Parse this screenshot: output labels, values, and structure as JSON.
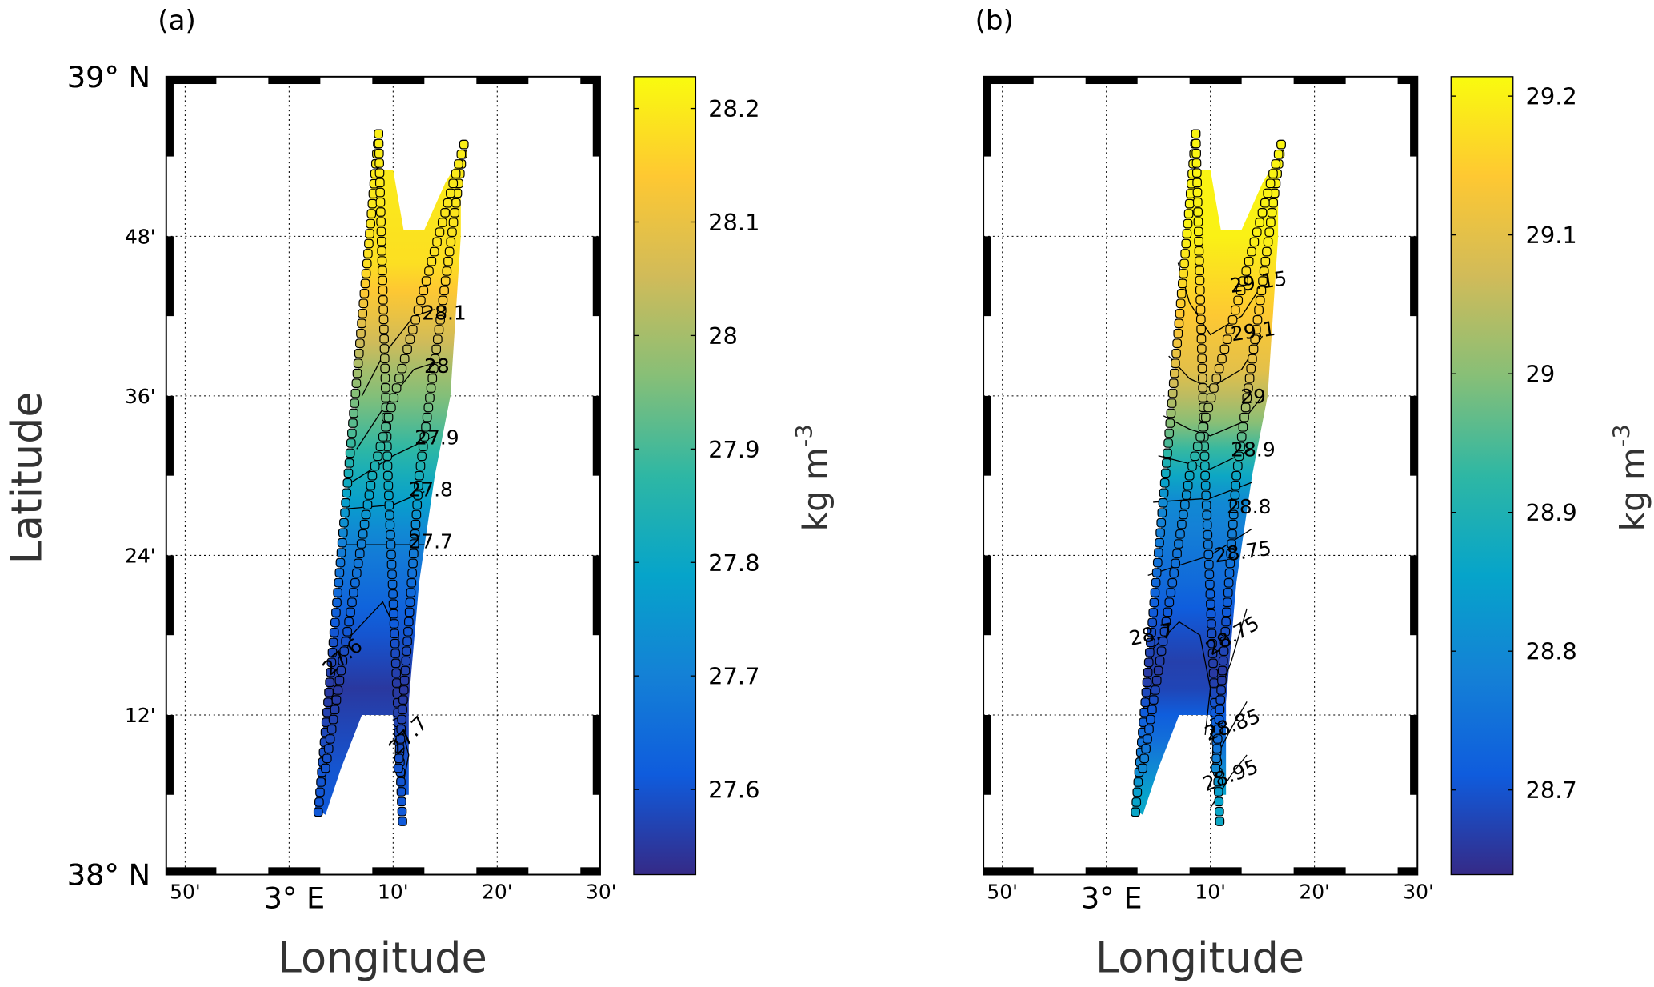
{
  "chart_data": [
    {
      "type": "heatmap",
      "panel_label": "(a)",
      "xlabel": "Longitude",
      "ylabel": "Latitude",
      "lat_tick_labels": [
        "39° N",
        "48'",
        "36'",
        "24'",
        "12'",
        "38° N"
      ],
      "lat_ticks_min": [
        60,
        48,
        36,
        24,
        12,
        0
      ],
      "lon_tick_labels": [
        "50'",
        "3° E",
        "10'",
        "20'",
        "30'"
      ],
      "lon_ticks_min": [
        -10,
        0,
        10,
        20,
        30
      ],
      "colorbar": {
        "label": "kg m",
        "label_sup": "-3",
        "ticks": [
          28.2,
          28.1,
          28.0,
          27.9,
          27.8,
          27.7,
          27.6
        ],
        "tick_labels": [
          "28.2",
          "28.1",
          "28",
          "27.9",
          "27.8",
          "27.7",
          "27.6"
        ],
        "clim": [
          27.525,
          28.228
        ],
        "colormap": "parula"
      },
      "grid": true,
      "field_value_by_latitude": [
        [
          0,
          27.62
        ],
        [
          8,
          27.6
        ],
        [
          14,
          27.55
        ],
        [
          18,
          27.6
        ],
        [
          25,
          27.7
        ],
        [
          29,
          27.8
        ],
        [
          33,
          27.9
        ],
        [
          38,
          28.0
        ],
        [
          42,
          28.1
        ],
        [
          46,
          28.18
        ],
        [
          60,
          28.22
        ]
      ],
      "contours": [
        {
          "level": "28.1",
          "points": [
            [
              7,
              36
            ],
            [
              9,
              39
            ],
            [
              12,
              42
            ],
            [
              14,
              42.5
            ]
          ],
          "label_at": [
            14.9,
            42.3
          ],
          "angle": 0
        },
        {
          "level": "28",
          "points": [
            [
              6.5,
              32
            ],
            [
              9,
              35
            ],
            [
              12,
              38
            ],
            [
              14,
              38.5
            ]
          ],
          "label_at": [
            14.2,
            38.3
          ],
          "angle": 0
        },
        {
          "level": "27.9",
          "points": [
            [
              6,
              29.5
            ],
            [
              10,
              31.5
            ],
            [
              14,
              33
            ]
          ],
          "label_at": [
            14.2,
            32.9
          ],
          "angle": 0
        },
        {
          "level": "27.8",
          "points": [
            [
              5.5,
              27.5
            ],
            [
              10,
              27.8
            ],
            [
              13,
              28.8
            ]
          ],
          "label_at": [
            13.6,
            29.0
          ],
          "angle": 0
        },
        {
          "level": "27.7",
          "points": [
            [
              5,
              24.8
            ],
            [
              13,
              24.8
            ]
          ],
          "label_at": [
            13.6,
            25.1
          ],
          "angle": 0
        },
        {
          "level": "27.6",
          "points": [
            [
              3.5,
              7
            ],
            [
              4,
              13
            ],
            [
              6,
              18
            ],
            [
              9,
              20.5
            ],
            [
              10.5,
              18
            ],
            [
              10.5,
              12
            ]
          ],
          "label_at": [
            5.1,
            16.4
          ],
          "angle": -40
        },
        {
          "level": "27.7",
          "points": [
            [
              10.5,
              12
            ],
            [
              11.5,
              9
            ],
            [
              11,
              7
            ]
          ],
          "label_at": [
            11.4,
            10.5
          ],
          "angle": -45
        }
      ],
      "tracks": [
        [
          [
            8.6,
            55.7
          ],
          [
            2.8,
            4.7
          ]
        ],
        [
          [
            8.6,
            55.7
          ],
          [
            9.5,
            30
          ],
          [
            10.9,
            4.0
          ]
        ],
        [
          [
            16.8,
            54.9
          ],
          [
            12.5,
            30
          ],
          [
            10.5,
            8
          ]
        ],
        [
          [
            16.8,
            54.9
          ],
          [
            8,
            30
          ],
          [
            3.5,
            8
          ]
        ]
      ]
    },
    {
      "type": "heatmap",
      "panel_label": "(b)",
      "xlabel": "Longitude",
      "ylabel": "",
      "lat_tick_labels": [
        "39° N",
        "48'",
        "36'",
        "24'",
        "12'",
        "38° N"
      ],
      "lat_ticks_min": [
        60,
        48,
        36,
        24,
        12,
        0
      ],
      "lon_tick_labels": [
        "50'",
        "3° E",
        "10'",
        "20'",
        "30'"
      ],
      "lon_ticks_min": [
        -10,
        0,
        10,
        20,
        30
      ],
      "colorbar": {
        "label": "kg m",
        "label_sup": "-3",
        "ticks": [
          29.2,
          29.1,
          29.0,
          28.9,
          28.8,
          28.7
        ],
        "tick_labels": [
          "29.2",
          "29.1",
          "29",
          "28.9",
          "28.8",
          "28.7"
        ],
        "clim": [
          28.639,
          29.214
        ],
        "colormap": "parula"
      },
      "grid": true,
      "field_value_by_latitude": [
        [
          0,
          28.9
        ],
        [
          6,
          28.85
        ],
        [
          10,
          28.75
        ],
        [
          15,
          28.66
        ],
        [
          19,
          28.7
        ],
        [
          23,
          28.75
        ],
        [
          28,
          28.8
        ],
        [
          31,
          28.9
        ],
        [
          34,
          29.0
        ],
        [
          38,
          29.1
        ],
        [
          43,
          29.15
        ],
        [
          48,
          29.2
        ],
        [
          60,
          29.21
        ]
      ],
      "contours": [
        {
          "level": "29.15",
          "points": [
            [
              6.9,
              46
            ],
            [
              8,
              43
            ],
            [
              10,
              40.6
            ],
            [
              13,
              42
            ],
            [
              15.5,
              45
            ]
          ],
          "label_at": [
            14.6,
            44.6
          ],
          "angle": -8
        },
        {
          "level": "29.1",
          "points": [
            [
              6,
              39
            ],
            [
              8,
              37.3
            ],
            [
              10,
              36.6
            ],
            [
              13,
              38
            ],
            [
              15,
              40.5
            ]
          ],
          "label_at": [
            14.1,
            40.9
          ],
          "angle": -8
        },
        {
          "level": "29",
          "points": [
            [
              5.5,
              34.5
            ],
            [
              8,
              33.5
            ],
            [
              10,
              33
            ],
            [
              13,
              34
            ],
            [
              15,
              36
            ]
          ],
          "label_at": [
            14.1,
            36.0
          ],
          "angle": 0
        },
        {
          "level": "28.9",
          "points": [
            [
              5,
              31.5
            ],
            [
              10,
              30.5
            ],
            [
              14,
              32
            ]
          ],
          "label_at": [
            14.1,
            32.0
          ],
          "angle": 0
        },
        {
          "level": "28.8",
          "points": [
            [
              4.5,
              28
            ],
            [
              10,
              28.3
            ],
            [
              14,
              29.5
            ]
          ],
          "label_at": [
            13.7,
            27.7
          ],
          "angle": 0
        },
        {
          "level": "28.75",
          "points": [
            [
              4,
              22.5
            ],
            [
              10,
              24
            ],
            [
              14,
              26
            ]
          ],
          "label_at": [
            13.1,
            24.3
          ],
          "angle": -8
        },
        {
          "level": "28.7",
          "points": [
            [
              3.5,
              12
            ],
            [
              4.5,
              17
            ],
            [
              7,
              19
            ],
            [
              9,
              18
            ],
            [
              10,
              14
            ],
            [
              9.5,
              10.5
            ]
          ],
          "label_at": [
            4.3,
            18.1
          ],
          "angle": -12
        },
        {
          "level": "28.75",
          "points": [
            [
              10.5,
              13
            ],
            [
              12,
              16
            ],
            [
              13.5,
              20
            ]
          ],
          "label_at": [
            12.1,
            18.0
          ],
          "angle": -30
        },
        {
          "level": "28.85",
          "points": [
            [
              10,
              8
            ],
            [
              12,
              11
            ],
            [
              13.5,
              13
            ]
          ],
          "label_at": [
            12.1,
            11.3
          ],
          "angle": -20
        },
        {
          "level": "28.95",
          "points": [
            [
              10,
              5
            ],
            [
              12,
              7.5
            ],
            [
              13.5,
              9
            ]
          ],
          "label_at": [
            11.9,
            7.5
          ],
          "angle": -20
        }
      ],
      "tracks": [
        [
          [
            8.6,
            55.7
          ],
          [
            2.8,
            4.7
          ]
        ],
        [
          [
            8.6,
            55.7
          ],
          [
            9.5,
            30
          ],
          [
            10.9,
            4.0
          ]
        ],
        [
          [
            16.8,
            54.9
          ],
          [
            12.5,
            30
          ],
          [
            10.5,
            8
          ]
        ],
        [
          [
            16.8,
            54.9
          ],
          [
            8,
            30
          ],
          [
            3.5,
            8
          ]
        ]
      ]
    }
  ]
}
